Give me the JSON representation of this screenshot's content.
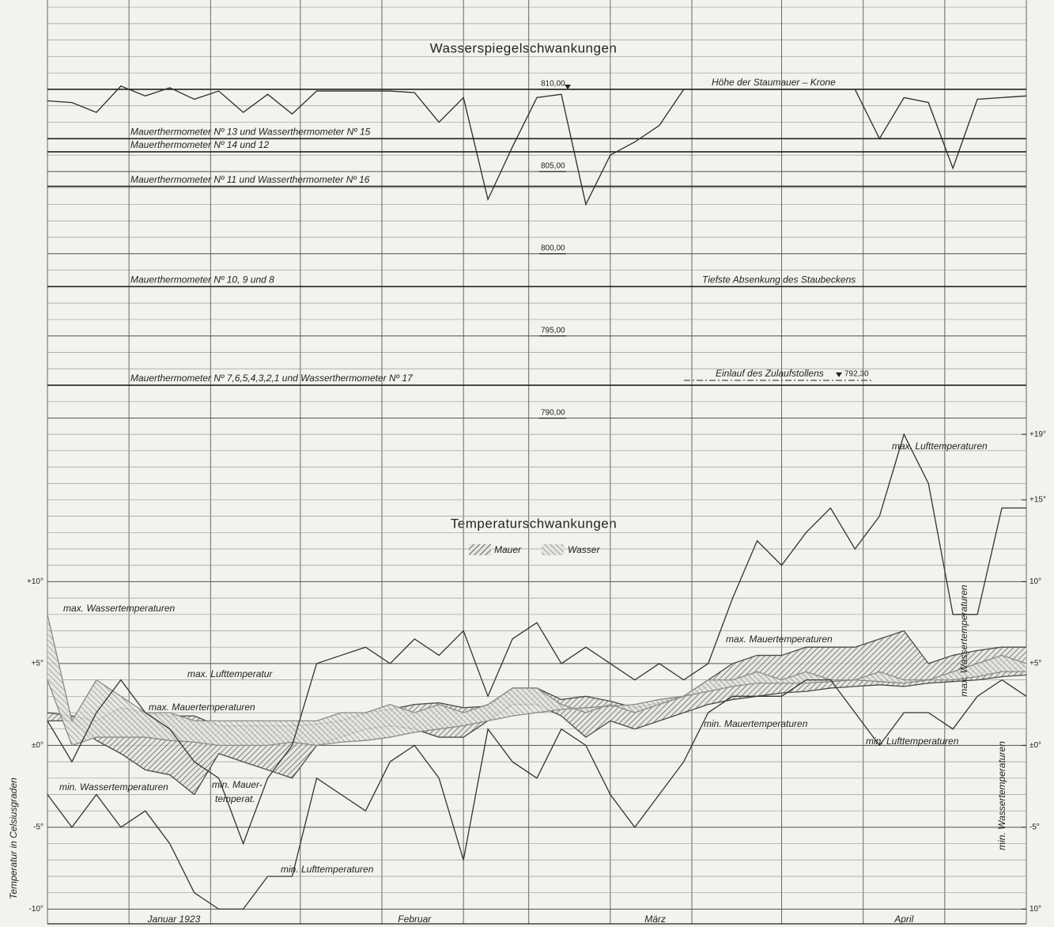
{
  "chart_data": [
    {
      "type": "line",
      "title": "Wasserspiegelschwankungen",
      "x": [
        0,
        3,
        6,
        9,
        12,
        15,
        18,
        21,
        24,
        27,
        30,
        33,
        36,
        39,
        42,
        45,
        48,
        51,
        54,
        57,
        60,
        63,
        66,
        69,
        72,
        75,
        78,
        81,
        84,
        87,
        90,
        93,
        96,
        99,
        102,
        105,
        108,
        111,
        114,
        117,
        120
      ],
      "xlim": [
        0,
        120
      ],
      "xgrid": [
        0,
        10,
        20,
        31,
        41,
        51,
        59,
        69,
        79,
        90,
        100,
        110,
        120
      ],
      "series": [
        {
          "color": "#2a2a2a",
          "values": [
            809.3,
            809.2,
            808.6,
            810.2,
            809.6,
            810.1,
            809.4,
            809.9,
            808.6,
            809.7,
            808.5,
            809.9,
            809.9,
            809.9,
            809.9,
            809.8,
            808,
            809.5,
            803.3,
            806.5,
            809.5,
            809.7,
            803,
            806,
            806.8,
            807.8,
            810,
            810,
            810,
            810,
            810,
            810,
            810,
            810,
            807,
            809.5,
            809.2,
            805.2,
            809.4,
            809.5,
            809.6
          ]
        }
      ],
      "ylim": [
        789.5,
        815.1
      ],
      "yticks": [
        {
          "value": 810,
          "label": "810,00"
        },
        {
          "value": 805,
          "label": "805,00"
        },
        {
          "value": 800,
          "label": "800,00"
        },
        {
          "value": 795,
          "label": "795,00"
        },
        {
          "value": 790,
          "label": "790,00"
        }
      ],
      "grid": true,
      "annotations": [
        {
          "text": "Mauerthermometer Nº 13 und Wasserthermometer Nº 15",
          "level": 807.0
        },
        {
          "text": "Mauerthermometer Nº 14 und 12",
          "level": 806.2
        },
        {
          "text": "Mauerthermometer Nº 11 und Wasserthermometer Nº 16",
          "level": 804.1
        },
        {
          "text": "Mauerthermometer Nº 10, 9 und 8",
          "level": 798.0
        },
        {
          "text": "Mauerthermometer Nº 7,6,5,4,3,2,1 und Wasserthermometer Nº 17",
          "level": 792.0
        },
        {
          "text": "Höhe der Staumauer – Krone",
          "level": 810
        },
        {
          "text": "Tiefste Absenkung des Staubeckens",
          "level": 798.0
        },
        {
          "text": "Einlauf des Zulaufstollens",
          "level": {
            "value": 792.3,
            "label": "792,30"
          }
        }
      ]
    },
    {
      "type": "band-line",
      "title": "Temperaturschwankungen",
      "y_label": "Temperatur in Celsiusgraden",
      "x": [
        0,
        3,
        6,
        9,
        12,
        15,
        18,
        21,
        24,
        27,
        30,
        33,
        36,
        39,
        42,
        45,
        48,
        51,
        54,
        57,
        60,
        63,
        66,
        69,
        72,
        75,
        78,
        81,
        84,
        87,
        90,
        93,
        96,
        99,
        102,
        105,
        108,
        111,
        114,
        117,
        120
      ],
      "xlim": [
        0,
        120
      ],
      "months": [
        {
          "label": "Januar 1923",
          "start": 0,
          "end": 31
        },
        {
          "label": "Februar",
          "start": 31,
          "end": 59
        },
        {
          "label": "März",
          "start": 59,
          "end": 90
        },
        {
          "label": "April",
          "start": 90,
          "end": 120
        }
      ],
      "ylim": [
        -10.9,
        19.2
      ],
      "yticks": [
        {
          "value": 10,
          "label": "+10°"
        },
        {
          "value": 5,
          "label": "+5°"
        },
        {
          "value": 0,
          "label": "±0°"
        },
        {
          "value": -5,
          "label": "-5°"
        },
        {
          "value": -10,
          "label": "-10°"
        }
      ],
      "y2lim": [
        -10.9,
        19.2
      ],
      "y2ticks": [
        {
          "value": 19,
          "label": "+19°"
        },
        {
          "value": 15,
          "label": "+15°"
        },
        {
          "value": 10,
          "label": "10°"
        },
        {
          "value": 5,
          "label": "+5°"
        },
        {
          "value": 0,
          "label": "±0°"
        },
        {
          "value": -5,
          "label": "-5°"
        },
        {
          "value": -10,
          "label": "10°"
        }
      ],
      "grid": true,
      "series": [
        {
          "name": "max. Lufttemperaturen",
          "color": "#333333",
          "values": [
            1.5,
            -1,
            2,
            4,
            2,
            1,
            -1,
            -2,
            -6,
            -2,
            0,
            5,
            5.5,
            6,
            5,
            6.5,
            5.5,
            7,
            3,
            6.5,
            7.5,
            5,
            6,
            5,
            4,
            5,
            4,
            5,
            9,
            12.5,
            11,
            13,
            14.5,
            12,
            14,
            19,
            16,
            8,
            8,
            14.5,
            14.5
          ]
        },
        {
          "name": "min. Lufttemperaturen",
          "color": "#333333",
          "values": [
            -3,
            -5,
            -3,
            -5,
            -4,
            -6,
            -9,
            -10,
            -10,
            -8,
            -8,
            -2,
            -3,
            -4,
            -1,
            0,
            -2,
            -7,
            1,
            -1,
            -2,
            1,
            0,
            -3,
            -5,
            -3,
            -1,
            2,
            3,
            3,
            3,
            4,
            4,
            2,
            0,
            2,
            2,
            1,
            3,
            4,
            3
          ]
        }
      ],
      "bands": [
        {
          "name": "Mauer",
          "color": "#4a4a4a",
          "hatch": "/",
          "max": {
            "name": "max. Mauertemperaturen",
            "values": [
              2,
              1.8,
              1.5,
              2.3,
              2,
              1.8,
              1.8,
              1.2,
              1.2,
              1.2,
              1.2,
              1.3,
              1.5,
              2,
              2.2,
              2.5,
              2.6,
              2.3,
              2.4,
              3.5,
              3.5,
              2.8,
              3,
              2.7,
              2.3,
              2.6,
              3,
              4,
              5,
              5.5,
              5.5,
              6,
              6,
              6,
              6.5,
              7,
              5,
              5.5,
              5.8,
              6,
              6
            ]
          },
          "min": {
            "name": "min. Mauertemperaturen",
            "values": [
              1.5,
              1.5,
              0.3,
              -0.5,
              -1.5,
              -1.8,
              -3,
              -0.5,
              -1,
              -1.5,
              -2,
              0,
              0.5,
              1,
              1.2,
              1,
              0.5,
              0.5,
              1.5,
              2.5,
              2.5,
              1.8,
              0.5,
              1.5,
              1,
              1.5,
              2,
              2.5,
              2.8,
              3,
              3.2,
              3.3,
              3.5,
              3.6,
              3.7,
              3.6,
              3.8,
              3.9,
              4,
              4.2,
              4.3
            ]
          }
        },
        {
          "name": "Wasser",
          "color": "#8a8a8a",
          "hatch": "\\",
          "max": {
            "name": "max. Wassertemperaturen",
            "values": [
              8,
              1.5,
              4,
              3,
              2,
              2,
              1.5,
              1.5,
              1.5,
              1.5,
              1.5,
              1.5,
              2,
              2,
              2.5,
              2,
              2.5,
              2,
              2.5,
              3.5,
              3.5,
              2.5,
              2,
              2.5,
              2,
              2.5,
              3,
              4,
              4,
              4.5,
              4,
              4.5,
              4,
              4,
              4.5,
              4,
              4,
              4.5,
              5,
              5.5,
              5
            ]
          },
          "min": {
            "name": "min. Wassertemperaturen",
            "values": [
              4,
              0,
              0.5,
              0.5,
              0.5,
              0.3,
              0.2,
              0,
              0,
              0,
              0.2,
              0,
              0.2,
              0.3,
              0.5,
              0.8,
              1,
              1.2,
              1.5,
              1.8,
              2,
              2.2,
              2.3,
              2.4,
              2.5,
              2.8,
              3,
              3.3,
              3.6,
              3.8,
              3.8,
              3.8,
              3.9,
              4,
              3.9,
              3.8,
              4,
              4,
              4.2,
              4.5,
              4.5
            ]
          }
        }
      ],
      "annotations": [
        {
          "text": "max. Lufttemperatur"
        },
        {
          "text": "min. Lufttemperaturen"
        },
        {
          "text": "max. Mauertemperaturen"
        },
        {
          "text": "min. Mauer-"
        },
        {
          "text": "temperat."
        },
        {
          "text": "max. Wassertemperaturen"
        },
        {
          "text": "min. Wassertemperaturen"
        }
      ]
    }
  ]
}
